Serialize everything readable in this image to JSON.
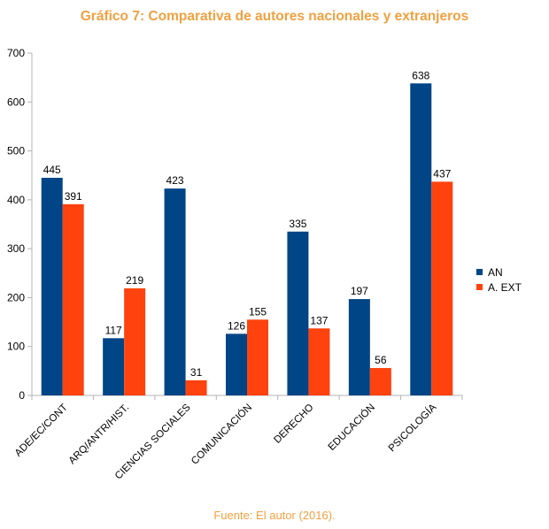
{
  "chart_data": {
    "type": "bar",
    "title": "Gráfico 7: Comparativa de autores nacionales y extranjeros",
    "categories": [
      "ADE/EC/CONT",
      "ARQ/ANTR/HIST.",
      "CIENCIAS SOCIALES",
      "COMUNICACIÓN",
      "DERECHO",
      "EDUCACIÓN",
      "PSICOLOGÍA"
    ],
    "series": [
      {
        "name": "AN",
        "color": "#004586",
        "values": [
          445,
          117,
          423,
          126,
          335,
          197,
          638
        ]
      },
      {
        "name": "A. EXT",
        "color": "#ff420e",
        "values": [
          391,
          219,
          31,
          155,
          137,
          56,
          437
        ]
      }
    ],
    "ylim": [
      0,
      700
    ],
    "yticks": [
      0,
      100,
      200,
      300,
      400,
      500,
      600,
      700
    ],
    "grid": false,
    "legend": "right",
    "title_color": "#f0a040"
  },
  "source_text": "Fuente: El autor (2016)."
}
